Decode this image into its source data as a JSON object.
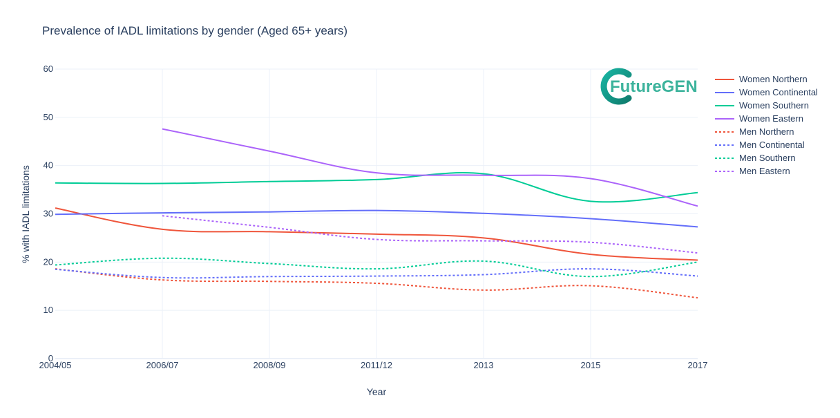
{
  "chart_data": {
    "type": "line",
    "title": "Prevalence of IADL limitations by gender (Aged 65+ years)",
    "xlabel": "Year",
    "ylabel": "% with IADL limitations",
    "x": [
      "2004/05",
      "2006/07",
      "2008/09",
      "2011/12",
      "2013",
      "2015",
      "2017"
    ],
    "ylim": [
      0,
      60
    ],
    "yticks": [
      0,
      10,
      20,
      30,
      40,
      50,
      60
    ],
    "grid": true,
    "legend_position": "right",
    "series": [
      {
        "name": "Women Northern",
        "color": "#EF553B",
        "dash": "solid",
        "values": [
          31.2,
          26.8,
          26.3,
          25.8,
          25.0,
          21.6,
          20.4
        ]
      },
      {
        "name": "Women Continental",
        "color": "#636EFA",
        "dash": "solid",
        "values": [
          29.9,
          30.2,
          30.4,
          30.7,
          30.1,
          29.0,
          27.3
        ]
      },
      {
        "name": "Women Southern",
        "color": "#00CC96",
        "dash": "solid",
        "values": [
          36.4,
          36.3,
          36.7,
          37.1,
          38.3,
          32.6,
          34.4
        ]
      },
      {
        "name": "Women Eastern",
        "color": "#AB63FA",
        "dash": "solid",
        "values": [
          null,
          47.6,
          43.0,
          38.5,
          38.0,
          37.3,
          31.6
        ]
      },
      {
        "name": "Men Northern",
        "color": "#EF553B",
        "dash": "dot",
        "values": [
          18.6,
          16.3,
          16.0,
          15.6,
          14.2,
          15.1,
          12.6
        ]
      },
      {
        "name": "Men Continental",
        "color": "#636EFA",
        "dash": "dot",
        "values": [
          18.5,
          16.8,
          17.0,
          17.1,
          17.4,
          18.6,
          17.1
        ]
      },
      {
        "name": "Men Southern",
        "color": "#00CC96",
        "dash": "dot",
        "values": [
          19.4,
          20.8,
          19.7,
          18.6,
          20.2,
          17.0,
          20.0
        ]
      },
      {
        "name": "Men Eastern",
        "color": "#AB63FA",
        "dash": "dot",
        "values": [
          null,
          29.6,
          27.2,
          24.7,
          24.4,
          24.1,
          21.9
        ]
      }
    ]
  },
  "logo": {
    "text": "FutureGEN"
  }
}
